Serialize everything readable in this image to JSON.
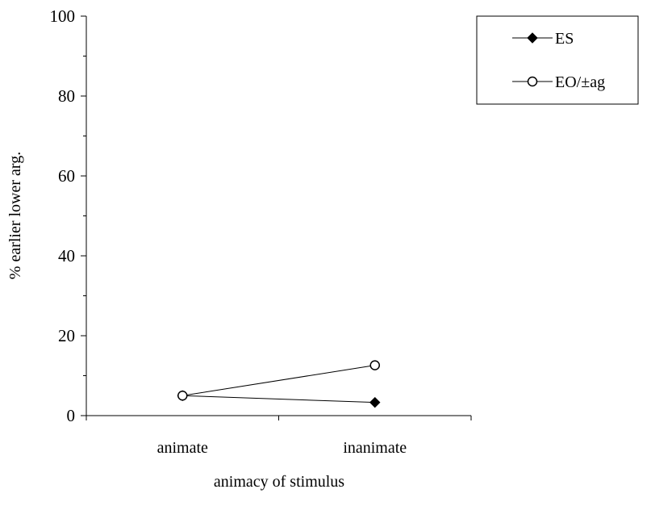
{
  "chart_data": {
    "type": "line",
    "categories": [
      "animate",
      "inanimate"
    ],
    "series": [
      {
        "name": "ES",
        "marker": "filled-diamond",
        "values": [
          5,
          3.3
        ]
      },
      {
        "name": "EO/±ag",
        "marker": "open-circle",
        "values": [
          5,
          12.6
        ]
      }
    ],
    "xlabel": "animacy of stimulus",
    "ylabel": "% earlier lower arg.",
    "ylim": [
      0,
      100
    ],
    "yticks": [
      "0",
      "20",
      "40",
      "60",
      "80",
      "100"
    ],
    "legend_position": "top-right",
    "grid": false
  }
}
